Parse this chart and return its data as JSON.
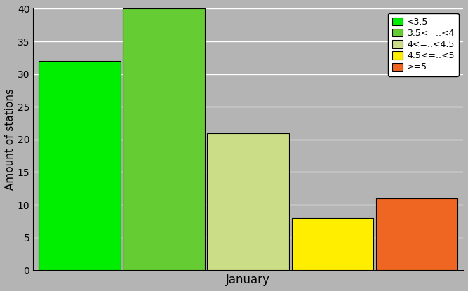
{
  "bars": [
    {
      "label": "<3.5",
      "value": 32,
      "color": "#00ee00"
    },
    {
      "label": "3.5<=..<4",
      "value": 40,
      "color": "#66cc33"
    },
    {
      "label": "4<=..<4.5",
      "value": 21,
      "color": "#ccdd88"
    },
    {
      "label": "4.5<=..<5",
      "value": 8,
      "color": "#ffee00"
    },
    {
      "label": ">=5",
      "value": 11,
      "color": "#ee6622"
    }
  ],
  "ylabel": "Amount of stations",
  "xlabel": "January",
  "ylim": [
    0,
    40
  ],
  "yticks": [
    0,
    5,
    10,
    15,
    20,
    25,
    30,
    35,
    40
  ],
  "background_color": "#b4b4b4",
  "grid_color": "#ffffff",
  "legend_colors": [
    "#00ee00",
    "#66cc33",
    "#ccdd88",
    "#ffee00",
    "#ee6622"
  ],
  "legend_labels": [
    "<3.5",
    "3.5<=..<4",
    "4<=..<4.5",
    "4.5<=..<5",
    ">=5"
  ]
}
